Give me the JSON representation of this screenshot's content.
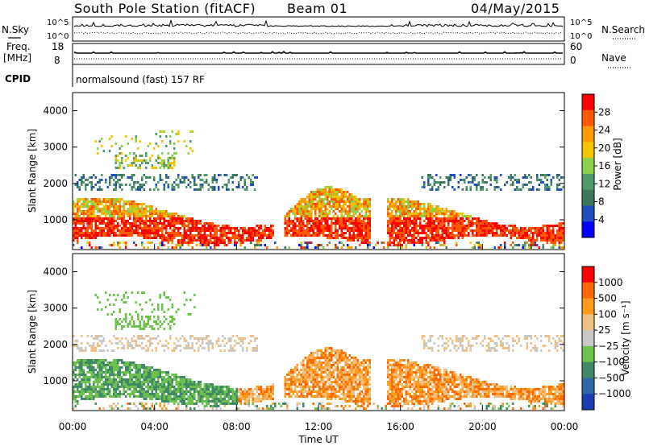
{
  "header": {
    "station": "South Pole Station (fitACF)",
    "beam": "Beam 01",
    "date": "04/May/2015"
  },
  "top_panels": {
    "nsky_label": "N.Sky",
    "nsearch_label": "N.Search",
    "nsky_ticks": [
      "10^5",
      "10^0"
    ],
    "nsearch_ticks": [
      "10^5",
      "10^0"
    ],
    "freq_label_1": "Freq.",
    "freq_label_2": "[MHz]",
    "freq_ticks": [
      "18",
      "8"
    ],
    "nave_label": "Nave",
    "nave_ticks": [
      "60",
      "0"
    ],
    "cpid_label": "CPID",
    "cpid_value": "normalsound (fast) 157 RF"
  },
  "colors": {
    "power_scale": [
      "#0000ff",
      "#1d4fbf",
      "#3a7a5a",
      "#4f9a6a",
      "#8ad24a",
      "#f5c400",
      "#ff9a00",
      "#ff5a00",
      "#ff0000"
    ],
    "velocity_scale": [
      "#1a3fb4",
      "#2f6aa8",
      "#3f8a66",
      "#6cc24a",
      "#c8c8c8",
      "#f0c080",
      "#ff9a1a",
      "#ff6a00",
      "#ff0000"
    ]
  },
  "chart_data": [
    {
      "type": "heatmap",
      "title": "Power",
      "xlabel": "",
      "ylabel": "Slant Range [km]",
      "xlim": [
        0,
        24
      ],
      "ylim": [
        180,
        4500
      ],
      "x_ticks": [],
      "y_ticks": [
        "1000",
        "2000",
        "3000",
        "4000"
      ],
      "colorbar": {
        "label": "Power [dB]",
        "range": [
          0,
          32
        ],
        "ticks": [
          "4",
          "8",
          "12",
          "16",
          "20",
          "24",
          "28"
        ]
      }
    },
    {
      "type": "heatmap",
      "title": "Velocity",
      "xlabel": "Time UT",
      "ylabel": "Slant Range [km]",
      "xlim": [
        0,
        24
      ],
      "ylim": [
        180,
        4500
      ],
      "x_ticks": [
        "00:00",
        "04:00",
        "08:00",
        "12:00",
        "16:00",
        "20:00",
        "00:00"
      ],
      "y_ticks": [
        "1000",
        "2000",
        "3000",
        "4000"
      ],
      "colorbar": {
        "label": "Velocity [m s⁻¹]",
        "ticks": [
          "1000",
          "500",
          "100",
          "25",
          "−25",
          "−100",
          "−500",
          "−1000"
        ]
      }
    }
  ]
}
